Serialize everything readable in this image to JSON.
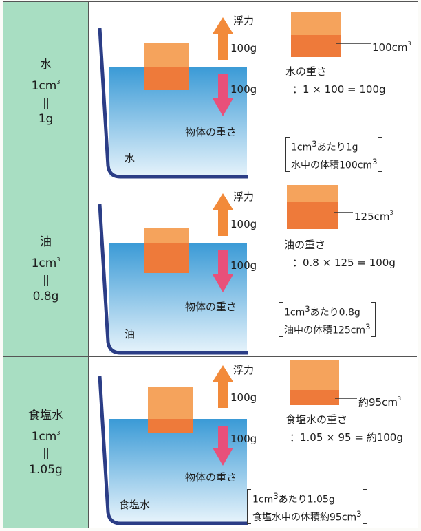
{
  "rows": [
    {
      "label": {
        "name": "水",
        "unit": "1cm",
        "exp": "3",
        "equals": "||",
        "weight": "1g"
      },
      "liquid_label": "水",
      "buoyancy_label": "浮力",
      "buoyancy_value": "100g",
      "weight_value": "100g",
      "weight_label": "物体の重さ",
      "volume_label": "100cm",
      "volume_exp": "3",
      "liquid_weight_title": "水の重さ",
      "liquid_weight_calc": "：1 × 100 = 100g",
      "bracket_line1_pre": "1cm",
      "bracket_line1_exp": "3",
      "bracket_line1_post": "あたり1g",
      "bracket_line2_pre": "水中の体積100cm",
      "bracket_line2_exp": "3",
      "submerged_fraction": 0.5
    },
    {
      "label": {
        "name": "油",
        "unit": "1cm",
        "exp": "3",
        "equals": "||",
        "weight": "0.8g"
      },
      "liquid_label": "油",
      "buoyancy_label": "浮力",
      "buoyancy_value": "100g",
      "weight_value": "100g",
      "weight_label": "物体の重さ",
      "volume_label": "125cm",
      "volume_exp": "3",
      "liquid_weight_title": "油の重さ",
      "liquid_weight_calc": "：0.8 × 125 = 100g",
      "bracket_line1_pre": "1cm",
      "bracket_line1_exp": "3",
      "bracket_line1_post": "あたり0.8g",
      "bracket_line2_pre": "油中の体積125cm",
      "bracket_line2_exp": "3",
      "submerged_fraction": 0.625
    },
    {
      "label": {
        "name": "食塩水",
        "unit": "1cm",
        "exp": "3",
        "equals": "||",
        "weight": "1.05g"
      },
      "liquid_label": "食塩水",
      "buoyancy_label": "浮力",
      "buoyancy_value": "100g",
      "weight_value": "100g",
      "weight_label": "物体の重さ",
      "volume_label": "約95cm",
      "volume_exp": "3",
      "liquid_weight_title": "食塩水の重さ",
      "liquid_weight_calc": "：1.05 × 95 = 約100g",
      "bracket_line1_pre": "1cm",
      "bracket_line1_exp": "3",
      "bracket_line1_post": "あたり1.05g",
      "bracket_line2_pre": "食塩水中の体積約95cm",
      "bracket_line2_exp": "3",
      "submerged_fraction": 0.475
    }
  ],
  "colors": {
    "label_bg": "#a8dec2",
    "liquid_top": "#3a9ad6",
    "liquid_bottom": "#e6f3fb",
    "container": "#2b3d86",
    "block_light": "#f5a35c",
    "block_dark": "#ee7a3a",
    "arrow_up": "#f28a3a",
    "arrow_down": "#e8507a"
  }
}
